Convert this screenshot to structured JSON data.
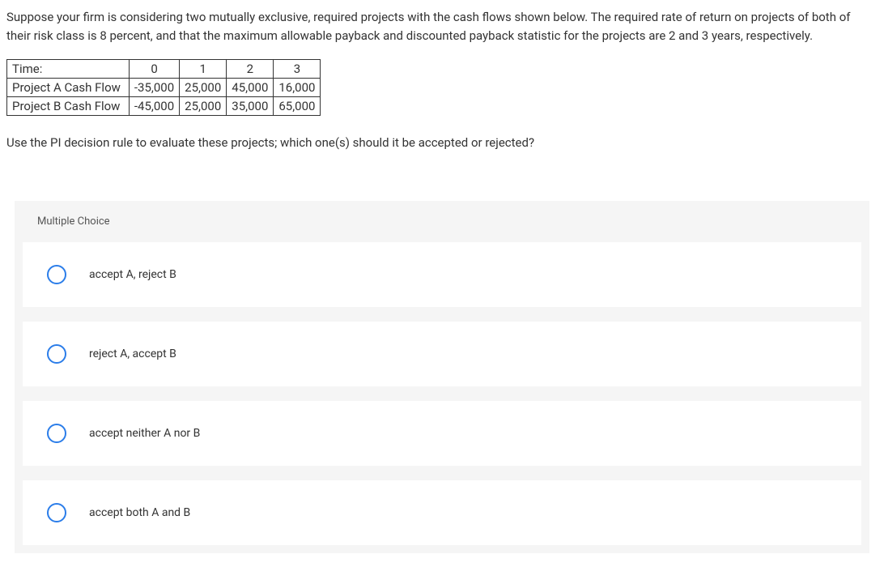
{
  "question": {
    "text": "Suppose your firm is considering two mutually exclusive, required projects with the cash flows shown below. The required rate of return on projects of both of their risk class is 8 percent, and that the maximum allowable payback and discounted payback statistic for the projects are 2 and 3 years, respectively."
  },
  "table": {
    "row0_label": "Time:",
    "col0": "0",
    "col1": "1",
    "col2": "2",
    "col3": "3",
    "rowA_label": "Project A Cash Flow",
    "a0": "-35,000",
    "a1": "25,000",
    "a2": "45,000",
    "a3": "16,000",
    "rowB_label": "Project B Cash Flow",
    "b0": "-45,000",
    "b1": "25,000",
    "b2": "35,000",
    "b3": "65,000",
    "border_color": "#333333",
    "cell_fontsize": 15
  },
  "prompt": "Use the PI decision rule to evaluate these projects; which one(s) should it be accepted or rejected?",
  "mc": {
    "header": "Multiple Choice",
    "options": {
      "o1": "accept A, reject B",
      "o2": "reject A, accept B",
      "o3": "accept neither A nor B",
      "o4": "accept both A and B"
    },
    "radio_border_color": "#2b7de9",
    "option_bg": "#ffffff",
    "container_bg": "#f5f5f5"
  }
}
